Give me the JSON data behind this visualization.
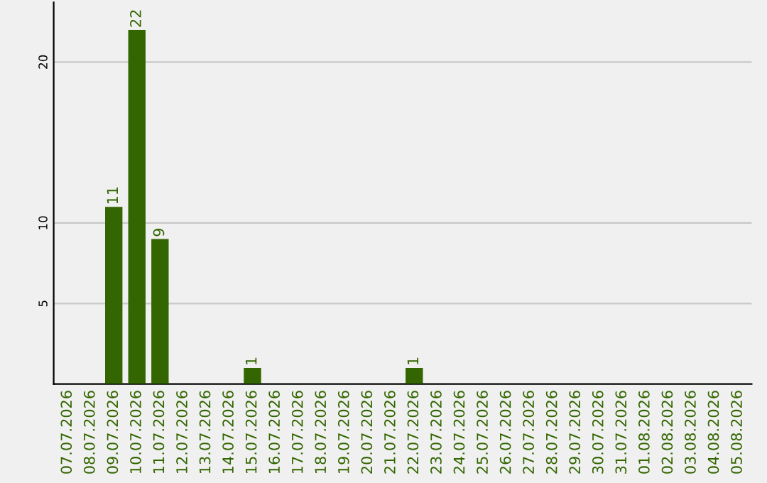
{
  "chart_data": {
    "type": "bar",
    "categories": [
      "07.07.2026",
      "08.07.2026",
      "09.07.2026",
      "10.07.2026",
      "11.07.2026",
      "12.07.2026",
      "13.07.2026",
      "14.07.2026",
      "15.07.2026",
      "16.07.2026",
      "17.07.2026",
      "18.07.2026",
      "19.07.2026",
      "20.07.2026",
      "21.07.2026",
      "22.07.2026",
      "23.07.2026",
      "24.07.2026",
      "25.07.2026",
      "26.07.2026",
      "27.07.2026",
      "28.07.2026",
      "29.07.2026",
      "30.07.2026",
      "31.07.2026",
      "01.08.2026",
      "02.08.2026",
      "03.08.2026",
      "04.08.2026",
      "05.08.2026"
    ],
    "values": [
      0,
      0,
      11,
      22,
      9,
      0,
      0,
      0,
      1,
      0,
      0,
      0,
      0,
      0,
      0,
      1,
      0,
      0,
      0,
      0,
      0,
      0,
      0,
      0,
      0,
      0,
      0,
      0,
      0,
      0
    ],
    "value_labels": [
      null,
      null,
      "11",
      "22",
      "9",
      null,
      null,
      null,
      "1",
      null,
      null,
      null,
      null,
      null,
      null,
      "1",
      null,
      null,
      null,
      null,
      null,
      null,
      null,
      null,
      null,
      null,
      null,
      null,
      null,
      null
    ],
    "color": "#336600",
    "ylim": [
      0,
      23.7
    ],
    "yticks": [
      5,
      10,
      20
    ],
    "grid": "y"
  }
}
